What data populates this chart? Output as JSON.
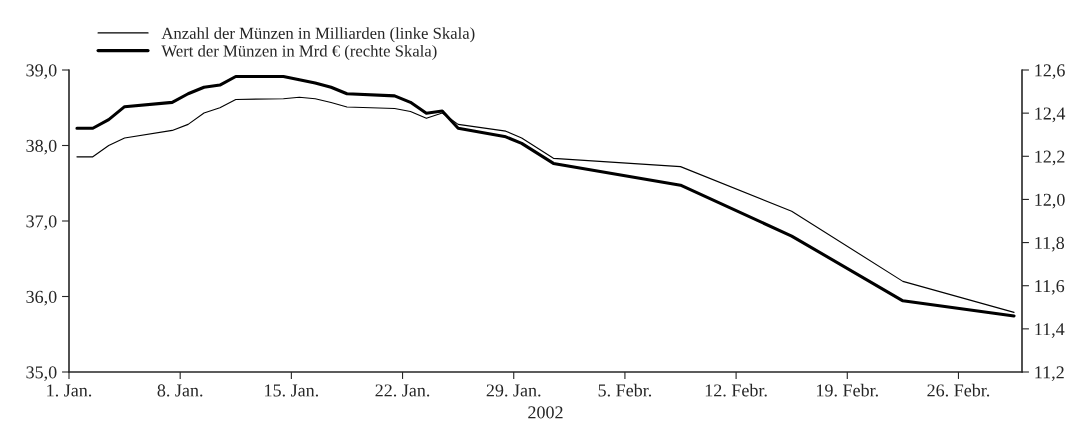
{
  "chart_data": {
    "type": "line",
    "xlabel": "2002",
    "x": [
      "2002-01-01T12:00",
      "2002-01-02T12:00",
      "2002-01-03T12:00",
      "2002-01-04T12:00",
      "2002-01-07T12:00",
      "2002-01-08T12:00",
      "2002-01-09T12:00",
      "2002-01-10T12:00",
      "2002-01-11T12:00",
      "2002-01-14T12:00",
      "2002-01-15T12:00",
      "2002-01-16T12:00",
      "2002-01-17T12:00",
      "2002-01-18T12:00",
      "2002-01-21T12:00",
      "2002-01-22T12:00",
      "2002-01-23T12:00",
      "2002-01-24T12:00",
      "2002-01-25T12:00",
      "2002-01-28T12:00",
      "2002-01-29T12:00",
      "2002-01-31T12:00",
      "2002-02-08T12:00",
      "2002-02-15T12:00",
      "2002-02-22T12:00",
      "2002-03-01T12:00"
    ],
    "series": [
      {
        "name": "Anzahl der Münzen in Milliarden (linke Skala)",
        "color": "#000000",
        "values": [
          37.85,
          37.85,
          38.0,
          38.1,
          38.2,
          38.28,
          38.43,
          38.5,
          38.61,
          38.62,
          38.64,
          38.62,
          38.57,
          38.51,
          38.49,
          38.45,
          38.36,
          38.43,
          38.28,
          38.19,
          38.1,
          37.83,
          37.72,
          37.13,
          36.2,
          35.79
        ]
      },
      {
        "name": "Wert der Münzen in Mrd € (rechte Skala)",
        "color": "#000000",
        "axis": "y2",
        "values": [
          12.33,
          12.33,
          12.37,
          12.43,
          12.45,
          12.49,
          12.52,
          12.53,
          12.57,
          12.57,
          12.555,
          12.54,
          12.52,
          12.49,
          12.48,
          12.45,
          12.4,
          12.41,
          12.33,
          12.29,
          12.26,
          12.167,
          12.066,
          11.83,
          11.53,
          11.46
        ]
      }
    ],
    "xlim": [
      "2002-01-01",
      "2002-03-02"
    ],
    "xticks": [
      {
        "value": "2002-01-01",
        "label": "1. Jan."
      },
      {
        "value": "2002-01-08",
        "label": "8. Jan."
      },
      {
        "value": "2002-01-15",
        "label": "15. Jan."
      },
      {
        "value": "2002-01-22",
        "label": "22. Jan."
      },
      {
        "value": "2002-01-29",
        "label": "29. Jan."
      },
      {
        "value": "2002-02-05",
        "label": "5. Febr."
      },
      {
        "value": "2002-02-12",
        "label": "12. Febr."
      },
      {
        "value": "2002-02-19",
        "label": "19. Febr."
      },
      {
        "value": "2002-02-26",
        "label": "26. Febr."
      }
    ],
    "ylim": [
      35,
      39
    ],
    "yticks": [
      {
        "value": 35,
        "label": "35,0"
      },
      {
        "value": 36,
        "label": "36,0"
      },
      {
        "value": 37,
        "label": "37,0"
      },
      {
        "value": 38,
        "label": "38,0"
      },
      {
        "value": 39,
        "label": "39,0"
      }
    ],
    "y2lim": [
      11.2,
      12.6
    ],
    "y2ticks": [
      {
        "value": 11.2,
        "label": "11,2"
      },
      {
        "value": 11.4,
        "label": "11,4"
      },
      {
        "value": 11.6,
        "label": "11,6"
      },
      {
        "value": 11.8,
        "label": "11,8"
      },
      {
        "value": 12.0,
        "label": "12,0"
      },
      {
        "value": 12.2,
        "label": "12,2"
      },
      {
        "value": 12.4,
        "label": "12,4"
      },
      {
        "value": 12.6,
        "label": "12,6"
      }
    ],
    "grid": false,
    "legend": "top left",
    "marker": "none",
    "line_style": "solid"
  }
}
